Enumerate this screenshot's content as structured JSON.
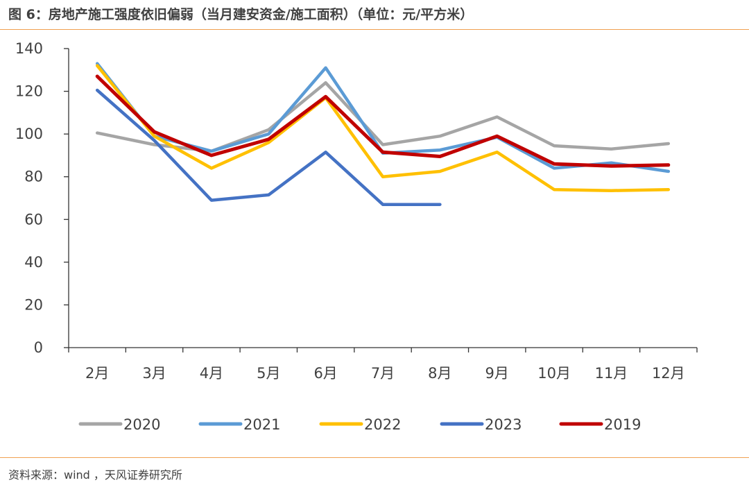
{
  "header": {
    "title": "图 6：房地产施工强度依旧偏弱（当月建安资金/施工面积）（单位：元/平方米）"
  },
  "footer": {
    "source": "资料来源：wind ，天风证券研究所"
  },
  "chart_data": {
    "type": "line",
    "categories": [
      "2月",
      "3月",
      "4月",
      "5月",
      "6月",
      "7月",
      "8月",
      "9月",
      "10月",
      "11月",
      "12月"
    ],
    "ylim": [
      0,
      140
    ],
    "yticks": [
      0,
      20,
      40,
      60,
      80,
      100,
      120,
      140
    ],
    "grid": false,
    "legend_position": "bottom",
    "series": [
      {
        "name": "2020",
        "color": "#a5a5a5",
        "values": [
          100.5,
          95,
          92,
          102,
          124,
          95,
          99,
          108,
          94.5,
          93,
          95.5
        ]
      },
      {
        "name": "2021",
        "color": "#5b9bd5",
        "values": [
          133,
          99,
          92,
          100,
          131,
          91,
          92.5,
          98.5,
          84,
          86.5,
          82.5
        ]
      },
      {
        "name": "2022",
        "color": "#ffc000",
        "values": [
          132,
          99,
          84,
          96,
          117,
          80,
          82.5,
          91.5,
          74,
          73.5,
          74
        ]
      },
      {
        "name": "2023",
        "color": "#4472c4",
        "values": [
          120.5,
          97,
          69,
          71.5,
          91.5,
          67,
          67,
          null,
          null,
          null,
          null
        ]
      },
      {
        "name": "2019",
        "color": "#c00000",
        "values": [
          127,
          101,
          90,
          97.5,
          117.5,
          91.5,
          89.5,
          99,
          86,
          85,
          85.5
        ]
      }
    ]
  }
}
